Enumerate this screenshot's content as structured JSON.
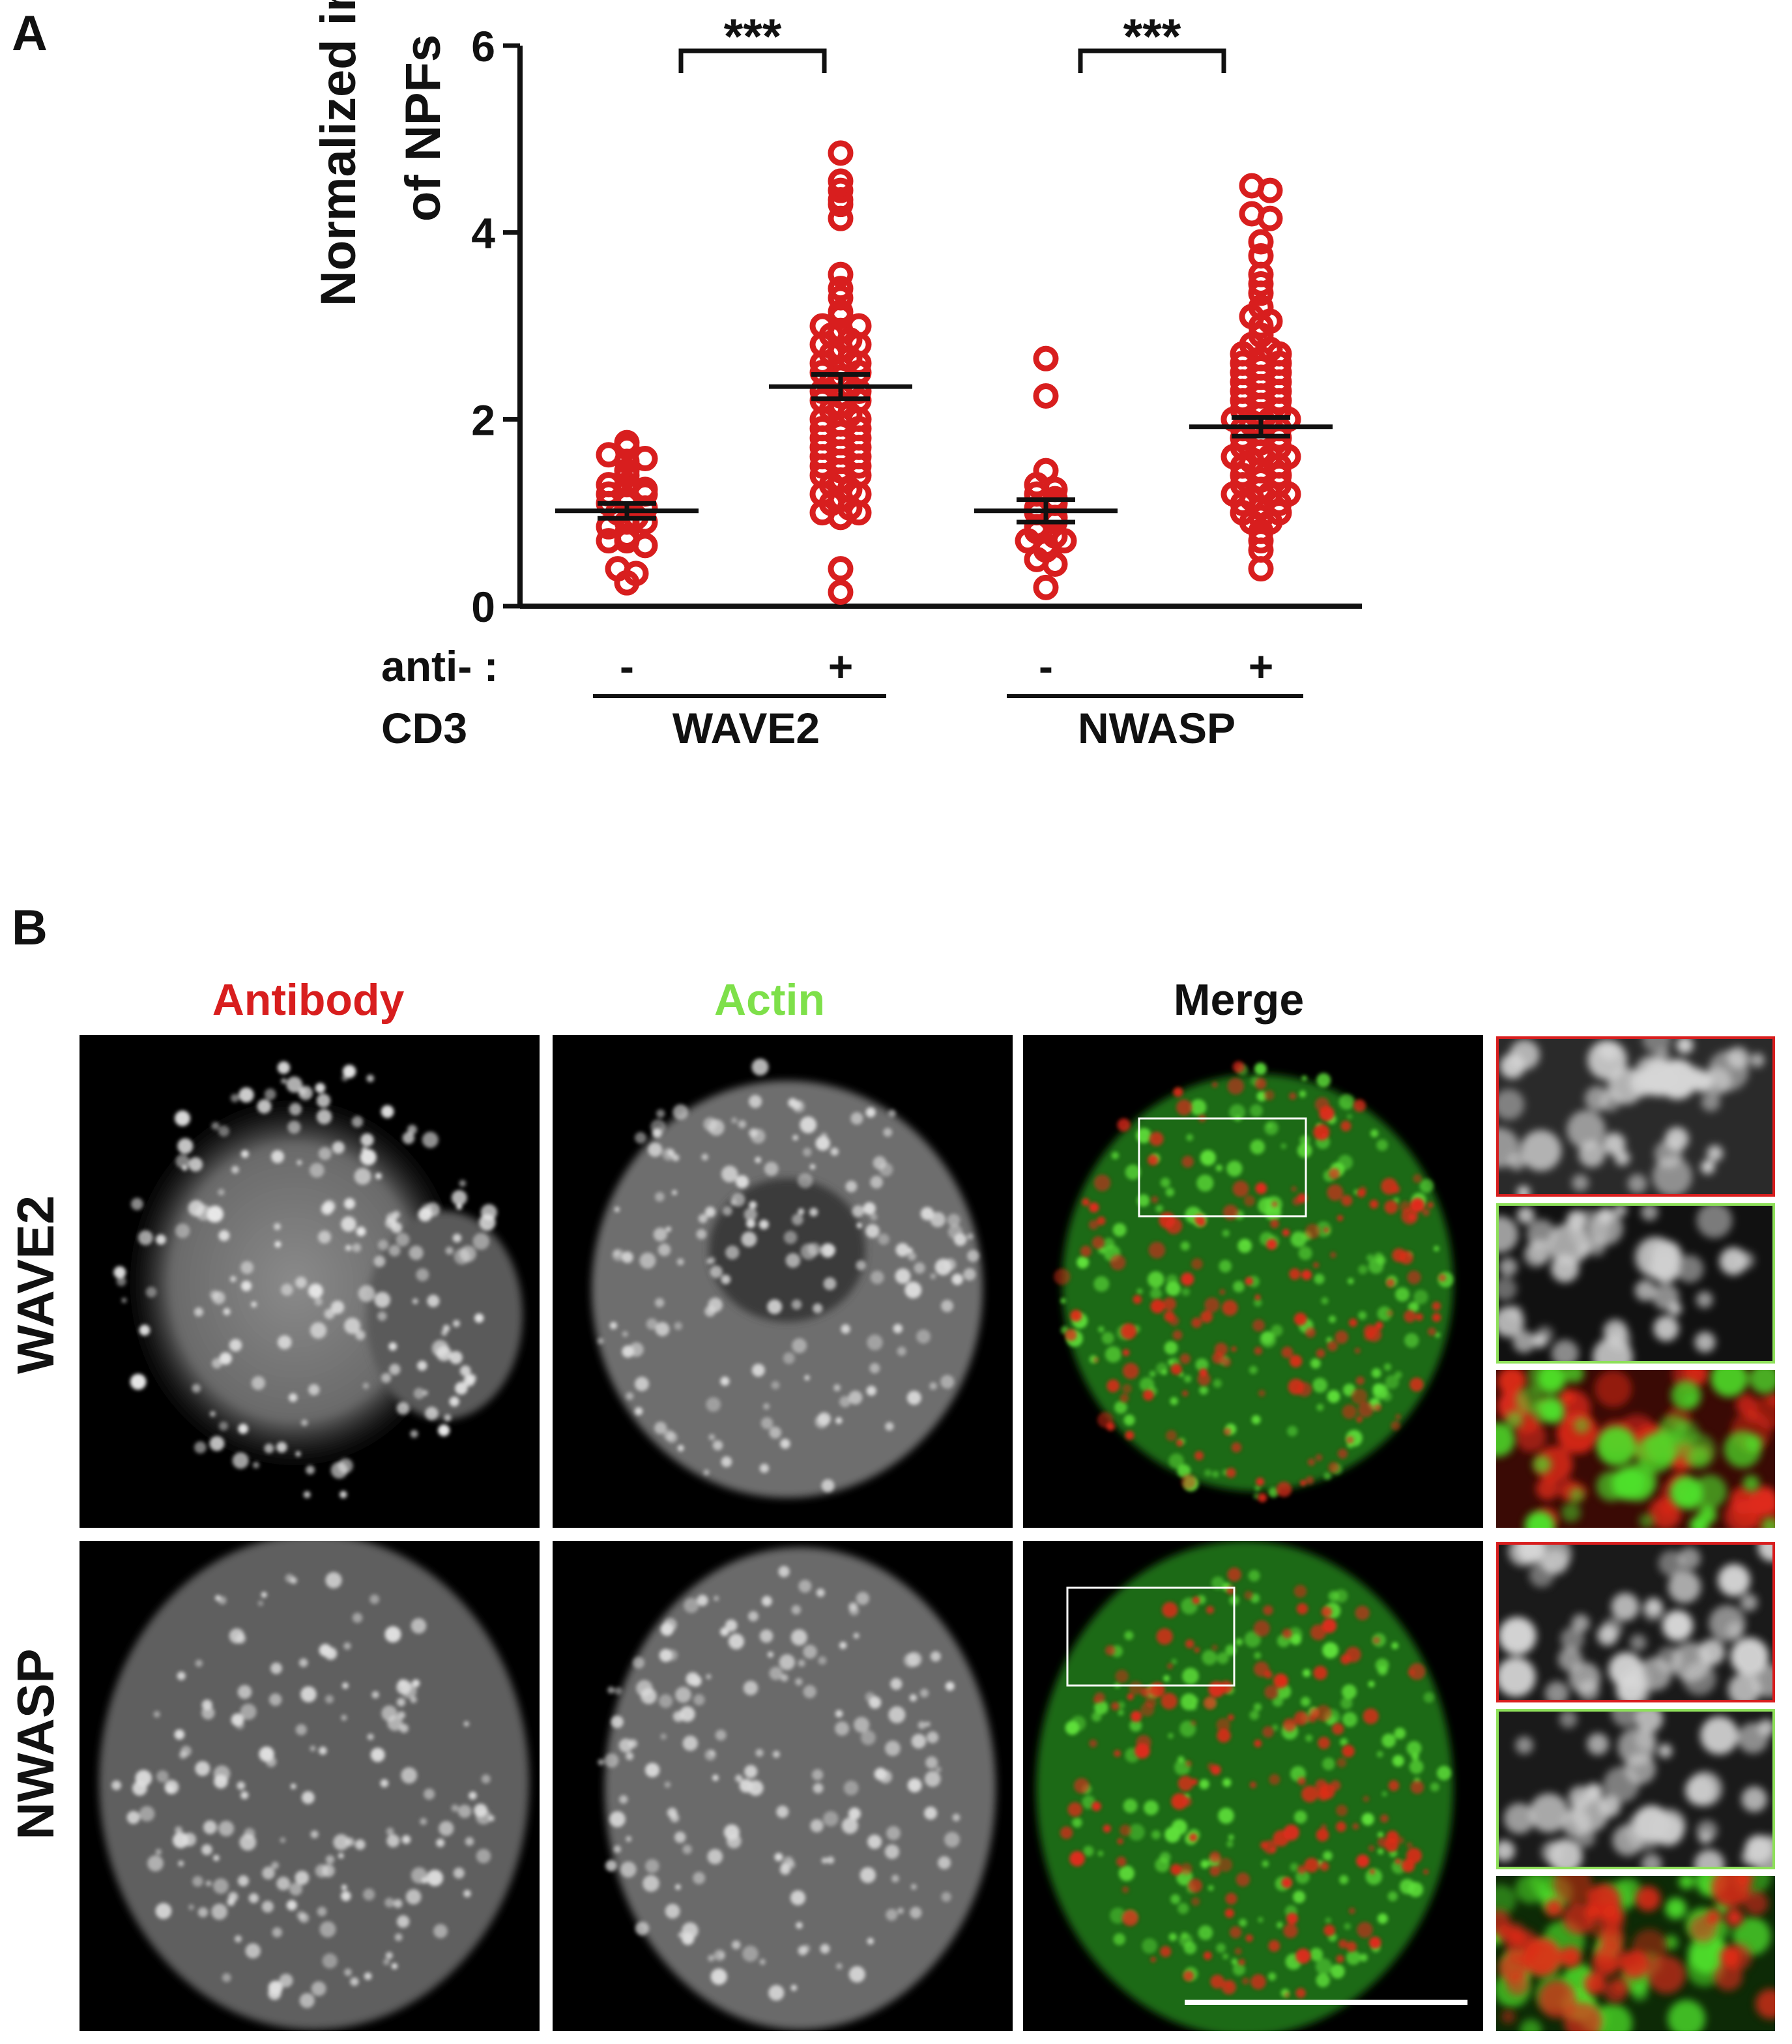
{
  "panelA": {
    "letter": "A",
    "ylabel_line1": "Normalized intensity",
    "ylabel_line2": "of NPFs",
    "row1_label": "anti- :",
    "row2_label": "CD3",
    "group_labels": [
      "WAVE2",
      "NWASP"
    ],
    "signs": [
      "-",
      "+",
      "-",
      "+"
    ],
    "significance": [
      "***",
      "***"
    ]
  },
  "chart_data": {
    "type": "scatter",
    "title": "",
    "xlabel": "",
    "ylabel": "Normalized intensity of NPFs",
    "ylim": [
      0,
      6
    ],
    "yticks": [
      0,
      2,
      4,
      6
    ],
    "grid": false,
    "marker_color": "#d81e1e",
    "categories": [
      "-",
      "+",
      "-",
      "+"
    ],
    "groups": [
      "WAVE2",
      "WAVE2",
      "NWASP",
      "NWASP"
    ],
    "series": [
      {
        "category_index": 0,
        "mean": 1.02,
        "sem": 0.08,
        "values": [
          1.7,
          1.62,
          1.75,
          1.55,
          1.45,
          1.58,
          1.4,
          1.3,
          1.3,
          1.2,
          1.1,
          1.25,
          1.15,
          1.0,
          0.95,
          0.85,
          1.1,
          0.9,
          0.7,
          0.7,
          0.65,
          0.4,
          0.35,
          0.25,
          0.75,
          0.9,
          1.05,
          1.2
        ]
      },
      {
        "category_index": 1,
        "mean": 2.35,
        "sem": 0.13,
        "values": [
          4.85,
          4.55,
          4.45,
          4.35,
          4.3,
          4.15,
          3.55,
          3.4,
          3.3,
          3.15,
          3.1,
          3.0,
          2.95,
          2.9,
          2.85,
          2.8,
          2.75,
          2.7,
          2.65,
          2.6,
          2.55,
          2.5,
          2.45,
          2.4,
          2.35,
          2.3,
          2.25,
          2.2,
          2.15,
          2.1,
          2.05,
          2.0,
          1.95,
          1.9,
          1.85,
          1.8,
          1.75,
          1.7,
          1.65,
          1.6,
          1.55,
          1.5,
          1.45,
          1.4,
          1.35,
          1.3,
          1.25,
          1.2,
          1.15,
          1.1,
          1.05,
          1.0,
          0.95,
          0.4,
          0.15,
          2.6,
          2.3,
          2.0,
          1.8,
          1.6,
          1.4,
          1.2,
          1.0,
          2.2,
          1.9,
          1.7,
          1.5,
          2.8,
          3.0,
          2.5
        ]
      },
      {
        "category_index": 2,
        "mean": 1.02,
        "sem": 0.12,
        "values": [
          2.65,
          2.25,
          1.45,
          1.3,
          1.25,
          1.2,
          1.15,
          1.05,
          1.0,
          0.95,
          0.85,
          0.8,
          0.75,
          0.7,
          0.65,
          0.6,
          0.5,
          0.45,
          0.2,
          1.1,
          0.9,
          0.7
        ]
      },
      {
        "category_index": 3,
        "mean": 1.92,
        "sem": 0.1,
        "values": [
          4.5,
          4.45,
          4.2,
          4.15,
          3.9,
          3.75,
          3.55,
          3.45,
          3.35,
          3.2,
          3.1,
          3.05,
          3.0,
          2.9,
          2.8,
          2.75,
          2.7,
          2.65,
          2.6,
          2.55,
          2.5,
          2.45,
          2.4,
          2.35,
          2.3,
          2.25,
          2.2,
          2.15,
          2.1,
          2.05,
          2.0,
          1.95,
          1.9,
          1.85,
          1.8,
          1.75,
          1.7,
          1.65,
          1.6,
          1.55,
          1.5,
          1.45,
          1.4,
          1.35,
          1.3,
          1.25,
          1.2,
          1.15,
          1.1,
          1.05,
          1.0,
          0.95,
          0.9,
          0.8,
          0.7,
          0.6,
          0.4,
          2.6,
          2.4,
          2.2,
          2.0,
          1.8,
          1.6,
          1.4,
          1.2,
          1.0,
          2.5,
          2.3,
          2.1,
          1.9,
          1.7,
          1.5,
          1.3,
          1.1,
          0.9,
          2.7,
          2.0,
          1.6,
          1.2
        ]
      }
    ]
  },
  "panelB": {
    "letter": "B",
    "col_headers": [
      {
        "text": "Antibody",
        "color": "#d81e1e"
      },
      {
        "text": "Actin",
        "color": "#7ee04a"
      },
      {
        "text": "Merge",
        "color": "#111111"
      }
    ],
    "row_labels": [
      "WAVE2",
      "NWASP"
    ],
    "inset_border_colors": [
      "#d81e1e",
      "#8ee05a"
    ]
  }
}
